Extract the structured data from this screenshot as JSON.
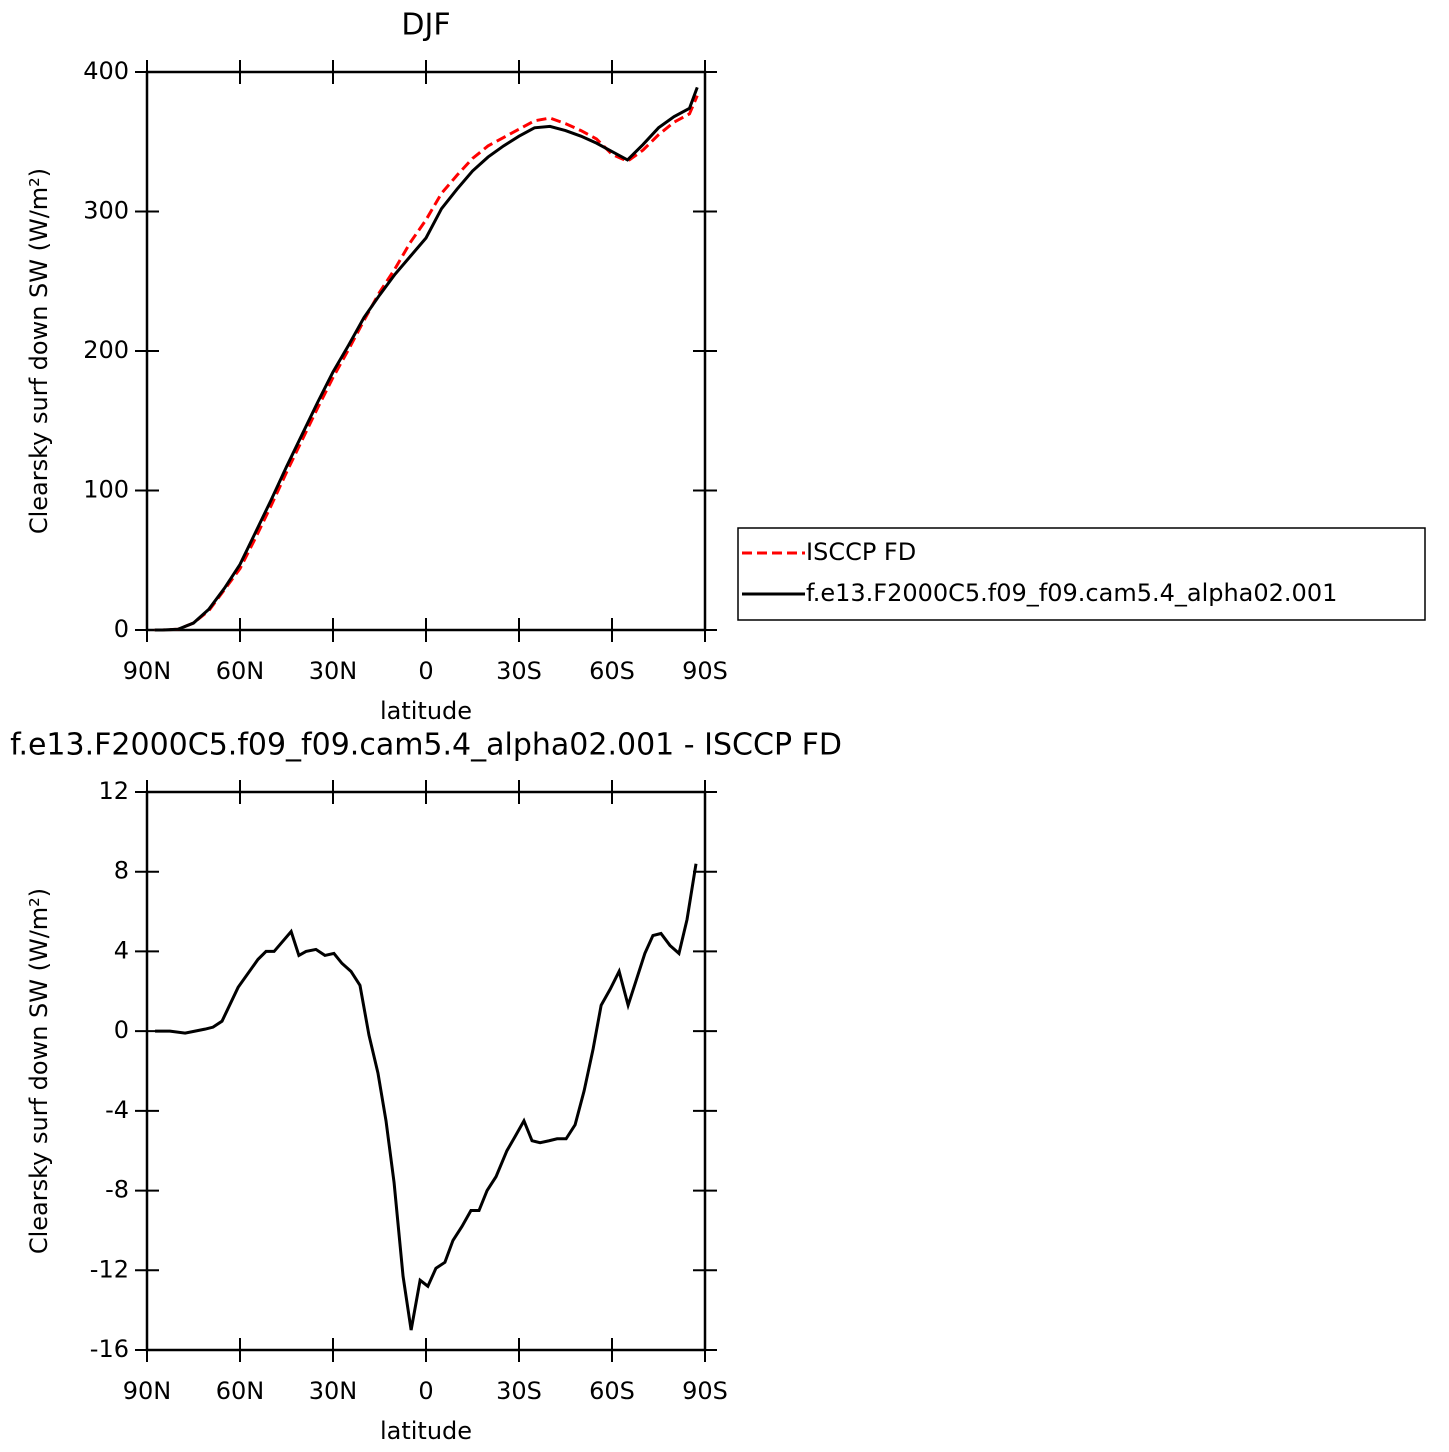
{
  "chart_data": [
    {
      "type": "line",
      "title": "DJF",
      "ylabel": "Clearsky surf down SW (W/m²)",
      "xlabel": "latitude",
      "x": [
        87.5,
        85,
        80,
        75,
        70,
        65,
        60,
        55,
        50,
        45,
        40,
        35,
        30,
        25,
        20,
        15,
        10,
        5,
        0,
        -5,
        -10,
        -15,
        -20,
        -25,
        -30,
        -35,
        -40,
        -45,
        -50,
        -55,
        -60,
        -65,
        -70,
        -75,
        -80,
        -85,
        -87.5
      ],
      "xlim": [
        90,
        -90
      ],
      "xticks": [
        {
          "value": 90,
          "label": "90N"
        },
        {
          "value": 60,
          "label": "60N"
        },
        {
          "value": 30,
          "label": "30N"
        },
        0,
        {
          "value": -30,
          "label": "30S"
        },
        {
          "value": -60,
          "label": "60S"
        },
        {
          "value": -90,
          "label": "90S"
        }
      ],
      "ylim": [
        0,
        400
      ],
      "yticks": [
        0,
        100,
        200,
        300,
        400
      ],
      "legend": "right",
      "series": [
        {
          "name": "ISCCP FD",
          "color": "#ff0000",
          "dash": true,
          "values": [
            0,
            0,
            0.5,
            5,
            14,
            29,
            44,
            66,
            89,
            113,
            136,
            159,
            181,
            201,
            222,
            242,
            259,
            278,
            294,
            313,
            326,
            338,
            347,
            353,
            359,
            365,
            367,
            363,
            358,
            352,
            341,
            336,
            344,
            355,
            364,
            370,
            383
          ]
        },
        {
          "name": "f.e13.F2000C5.f09_f09.cam5.4_alpha02.001",
          "color": "#000000",
          "dash": false,
          "values": [
            0,
            0,
            0.5,
            5,
            15,
            30,
            47,
            70,
            93,
            117,
            140,
            163,
            185,
            204,
            224,
            240,
            255,
            268,
            281,
            302,
            316,
            329,
            339,
            347,
            354,
            360,
            361,
            358,
            354,
            349,
            343,
            337,
            348,
            360,
            368,
            374,
            389
          ]
        }
      ]
    },
    {
      "type": "line",
      "title": "f.e13.F2000C5.f09_f09.cam5.4_alpha02.001 - ISCCP FD",
      "ylabel": "Clearsky surf down SW (W/m²)",
      "xlabel": "latitude",
      "x": [
        87.4,
        82.6,
        77.7,
        74.5,
        71.3,
        68.7,
        65.8,
        60.6,
        54.2,
        51.6,
        49,
        43.5,
        41,
        38.7,
        35.5,
        32.6,
        29.7,
        27.1,
        24.2,
        21.3,
        18.4,
        15.5,
        12.9,
        10.3,
        7.4,
        4.8,
        1.9,
        -0.6,
        -3.2,
        -6.1,
        -8.7,
        -11.6,
        -14.5,
        -17.1,
        -19.7,
        -22.6,
        -26.1,
        -28.7,
        -31.6,
        -34.2,
        -36.8,
        -39.7,
        -42.3,
        -45.2,
        -48.1,
        -51,
        -53.9,
        -56.5,
        -59.4,
        -62.3,
        -65.2,
        -67.7,
        -70.6,
        -73.2,
        -75.8,
        -78.7,
        -81.6,
        -84.2,
        -87.1
      ],
      "xlim": [
        90,
        -90
      ],
      "xticks": [
        {
          "value": 90,
          "label": "90N"
        },
        {
          "value": 60,
          "label": "60N"
        },
        {
          "value": 30,
          "label": "30N"
        },
        0,
        {
          "value": -30,
          "label": "30S"
        },
        {
          "value": -60,
          "label": "60S"
        },
        {
          "value": -90,
          "label": "90S"
        }
      ],
      "ylim": [
        -16,
        12
      ],
      "yticks": [
        -16,
        -12,
        -8,
        -4,
        0,
        4,
        8,
        12
      ],
      "series": [
        {
          "color": "#000000",
          "dash": false,
          "values": [
            0,
            0,
            -0.1,
            0,
            0.1,
            0.2,
            0.5,
            2.2,
            3.6,
            4.0,
            4.0,
            5.0,
            3.8,
            4.0,
            4.1,
            3.8,
            3.9,
            3.4,
            3.0,
            2.3,
            -0.2,
            -2.1,
            -4.5,
            -7.6,
            -12.3,
            -15.0,
            -12.5,
            -12.8,
            -11.9,
            -11.6,
            -10.5,
            -9.8,
            -9.0,
            -9.0,
            -8.0,
            -7.3,
            -6.0,
            -5.3,
            -4.5,
            -5.5,
            -5.6,
            -5.5,
            -5.4,
            -5.4,
            -4.7,
            -3.0,
            -0.9,
            1.3,
            2.1,
            3.0,
            1.3,
            2.5,
            3.9,
            4.8,
            4.9,
            4.3,
            3.9,
            5.6,
            8.4
          ]
        }
      ]
    }
  ]
}
